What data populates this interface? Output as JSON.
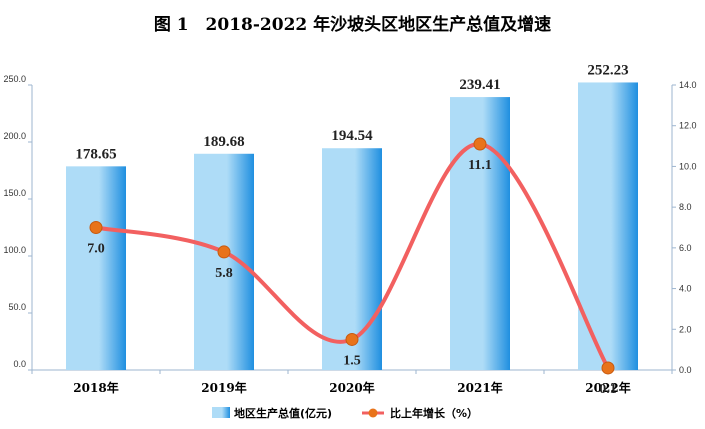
{
  "title": "图 1　2018-2022 年沙坡头区地区生产总值及增速",
  "chart_data": {
    "type": "bar",
    "categories": [
      "2018年",
      "2019年",
      "2020年",
      "2021年",
      "2022年"
    ],
    "series": [
      {
        "name": "地区生产总值(亿元)",
        "type": "bar",
        "axis": "left",
        "values": [
          178.65,
          189.68,
          194.54,
          239.41,
          252.23
        ],
        "labels": [
          "178.65",
          "189.68",
          "194.54",
          "239.41",
          "252.23"
        ]
      },
      {
        "name": "比上年增长（%）",
        "type": "line",
        "axis": "right",
        "values": [
          7.0,
          5.8,
          1.5,
          11.1,
          0.1
        ],
        "labels": [
          "7.0",
          "5.8",
          "1.5",
          "11.1",
          "0.1"
        ]
      }
    ],
    "y_left": {
      "lim": [
        0,
        250
      ],
      "ticks": [
        "0.0",
        "50.0",
        "100.0",
        "150.0",
        "200.0",
        "250.0"
      ]
    },
    "y_right": {
      "lim": [
        0,
        14
      ],
      "ticks": [
        "0.0",
        "2.0",
        "4.0",
        "6.0",
        "8.0",
        "10.0",
        "12.0",
        "14.0"
      ]
    },
    "legend": {
      "position": "bottom",
      "items": [
        "地区生产总值(亿元)",
        "比上年增长（%）"
      ]
    },
    "grid": false,
    "colors": {
      "bar_light": "#aedcf7",
      "bar_dark": "#1f8fe0",
      "line": "#f26060",
      "marker": "#e8731a",
      "axis": "#9db5cf"
    }
  }
}
